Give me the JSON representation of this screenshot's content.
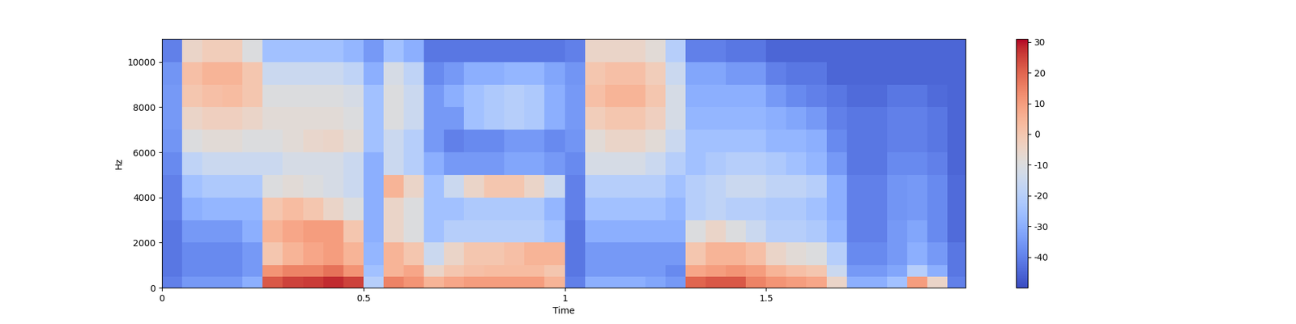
{
  "chart_data": {
    "type": "heatmap",
    "x_label": "Time",
    "y_label": "Hz",
    "color": "coolwarm",
    "x_edges": [
      0,
      0.05,
      0.1,
      0.15,
      0.2,
      0.25,
      0.3,
      0.35,
      0.4,
      0.45,
      0.5,
      0.55,
      0.6,
      0.65,
      0.7,
      0.75,
      0.8,
      0.85,
      0.9,
      0.95,
      1.0,
      1.05,
      1.1,
      1.15,
      1.2,
      1.25,
      1.3,
      1.35,
      1.4,
      1.45,
      1.5,
      1.55,
      1.6,
      1.65,
      1.7,
      1.75,
      1.8,
      1.85,
      1.9,
      1.95,
      2.0
    ],
    "y_edges": [
      0,
      500,
      1000,
      2000,
      3000,
      4000,
      5000,
      6000,
      7000,
      8000,
      9000,
      10000,
      11025
    ],
    "xlim": [
      0,
      1.995
    ],
    "xticks": [
      0,
      0.5,
      1,
      1.5
    ],
    "ylim": [
      0,
      11025
    ],
    "yticks": [
      0,
      2000,
      4000,
      6000,
      8000,
      10000
    ],
    "color_range": [
      -50,
      31
    ],
    "color_ticks": [
      -40,
      -30,
      -20,
      -10,
      0,
      10,
      20,
      30
    ],
    "cells_by_time": [
      [
        -40,
        -42,
        -42,
        -42,
        -40,
        -40,
        -38,
        -36,
        -35,
        -35,
        -36,
        -40
      ],
      [
        -35,
        -38,
        -38,
        -35,
        -30,
        -25,
        -18,
        -10,
        -5,
        0,
        2,
        -5
      ],
      [
        -35,
        -38,
        -38,
        -35,
        -28,
        -22,
        -15,
        -8,
        -3,
        2,
        5,
        -2
      ],
      [
        -35,
        -38,
        -38,
        -35,
        -28,
        -22,
        -15,
        -8,
        -3,
        3,
        5,
        -2
      ],
      [
        -30,
        -35,
        -35,
        -30,
        -28,
        -22,
        -15,
        -10,
        -5,
        0,
        0,
        -10
      ],
      [
        22,
        12,
        0,
        5,
        0,
        -10,
        -15,
        -10,
        -8,
        -10,
        -15,
        -25
      ],
      [
        25,
        15,
        5,
        8,
        3,
        -8,
        -12,
        -8,
        -8,
        -10,
        -15,
        -25
      ],
      [
        26,
        15,
        8,
        10,
        0,
        -10,
        -12,
        -6,
        -8,
        -10,
        -15,
        -25
      ],
      [
        28,
        18,
        10,
        10,
        -5,
        -12,
        -12,
        -5,
        -8,
        -10,
        -15,
        -25
      ],
      [
        25,
        12,
        5,
        0,
        -10,
        -15,
        -15,
        -8,
        -10,
        -12,
        -18,
        -28
      ],
      [
        -20,
        -25,
        -28,
        -30,
        -30,
        -30,
        -30,
        -25,
        -25,
        -25,
        -30,
        -35
      ],
      [
        15,
        5,
        5,
        -5,
        -5,
        5,
        -15,
        -15,
        -10,
        -10,
        -12,
        -25
      ],
      [
        12,
        8,
        0,
        -10,
        -10,
        -5,
        -20,
        -20,
        -15,
        -15,
        -18,
        -30
      ],
      [
        5,
        -5,
        -15,
        -25,
        -25,
        -25,
        -30,
        -35,
        -35,
        -35,
        -38,
        -42
      ],
      [
        8,
        0,
        -5,
        -20,
        -25,
        -15,
        -35,
        -40,
        -35,
        -30,
        -35,
        -42
      ],
      [
        10,
        2,
        0,
        -20,
        -22,
        -5,
        -35,
        -38,
        -25,
        -25,
        -30,
        -42
      ],
      [
        10,
        3,
        0,
        -20,
        -22,
        0,
        -35,
        -38,
        -22,
        -22,
        -30,
        -42
      ],
      [
        10,
        3,
        2,
        -20,
        -22,
        0,
        -32,
        -35,
        -20,
        -20,
        -28,
        -42
      ],
      [
        10,
        3,
        5,
        -20,
        -22,
        -5,
        -32,
        -35,
        -22,
        -22,
        -28,
        -42
      ],
      [
        5,
        0,
        5,
        -25,
        -28,
        -15,
        -35,
        -38,
        -30,
        -30,
        -32,
        -42
      ],
      [
        -40,
        -42,
        -42,
        -42,
        -40,
        -40,
        -38,
        -36,
        -35,
        -35,
        -36,
        -40
      ],
      [
        -30,
        -35,
        -35,
        -30,
        -25,
        -20,
        -12,
        -8,
        -2,
        2,
        0,
        -5
      ],
      [
        -30,
        -35,
        -35,
        -30,
        -25,
        -20,
        -12,
        -5,
        0,
        5,
        2,
        -5
      ],
      [
        -30,
        -35,
        -35,
        -30,
        -25,
        -20,
        -12,
        -5,
        0,
        5,
        2,
        -5
      ],
      [
        -32,
        -35,
        -35,
        -30,
        -25,
        -20,
        -15,
        -8,
        -3,
        0,
        -2,
        -8
      ],
      [
        -35,
        -38,
        -35,
        -30,
        -28,
        -25,
        -20,
        -15,
        -12,
        -12,
        -15,
        -20
      ],
      [
        20,
        8,
        0,
        -10,
        -20,
        -20,
        -25,
        -25,
        -28,
        -30,
        -32,
        -40
      ],
      [
        22,
        10,
        5,
        -5,
        -18,
        -18,
        -22,
        -25,
        -28,
        -30,
        -32,
        -40
      ],
      [
        22,
        12,
        5,
        -10,
        -20,
        -15,
        -20,
        -25,
        -28,
        -30,
        -35,
        -42
      ],
      [
        15,
        10,
        2,
        -15,
        -20,
        -15,
        -20,
        -25,
        -28,
        -30,
        -35,
        -42
      ],
      [
        12,
        5,
        -5,
        -20,
        -22,
        -18,
        -22,
        -28,
        -30,
        -35,
        -40,
        -45
      ],
      [
        10,
        2,
        -8,
        -20,
        -22,
        -18,
        -25,
        -28,
        -32,
        -38,
        -42,
        -45
      ],
      [
        8,
        0,
        -10,
        -22,
        -25,
        -20,
        -28,
        -30,
        -35,
        -40,
        -42,
        -45
      ],
      [
        -5,
        -15,
        -20,
        -28,
        -30,
        -30,
        -35,
        -38,
        -40,
        -42,
        -45,
        -45
      ],
      [
        -30,
        -35,
        -38,
        -40,
        -40,
        -40,
        -42,
        -42,
        -42,
        -44,
        -45,
        -45
      ],
      [
        -30,
        -35,
        -38,
        -40,
        -40,
        -40,
        -42,
        -42,
        -42,
        -44,
        -45,
        -45
      ],
      [
        -25,
        -32,
        -35,
        -35,
        -36,
        -36,
        -38,
        -40,
        -40,
        -42,
        -45,
        -45
      ],
      [
        10,
        -20,
        -30,
        -32,
        -35,
        -35,
        -38,
        -40,
        -40,
        -42,
        -45,
        -45
      ],
      [
        -5,
        -30,
        -35,
        -38,
        -38,
        -38,
        -40,
        -42,
        -42,
        -44,
        -45,
        -45
      ],
      [
        -40,
        -42,
        -42,
        -44,
        -44,
        -44,
        -45,
        -45,
        -45,
        -45,
        -45,
        -45
      ]
    ]
  }
}
